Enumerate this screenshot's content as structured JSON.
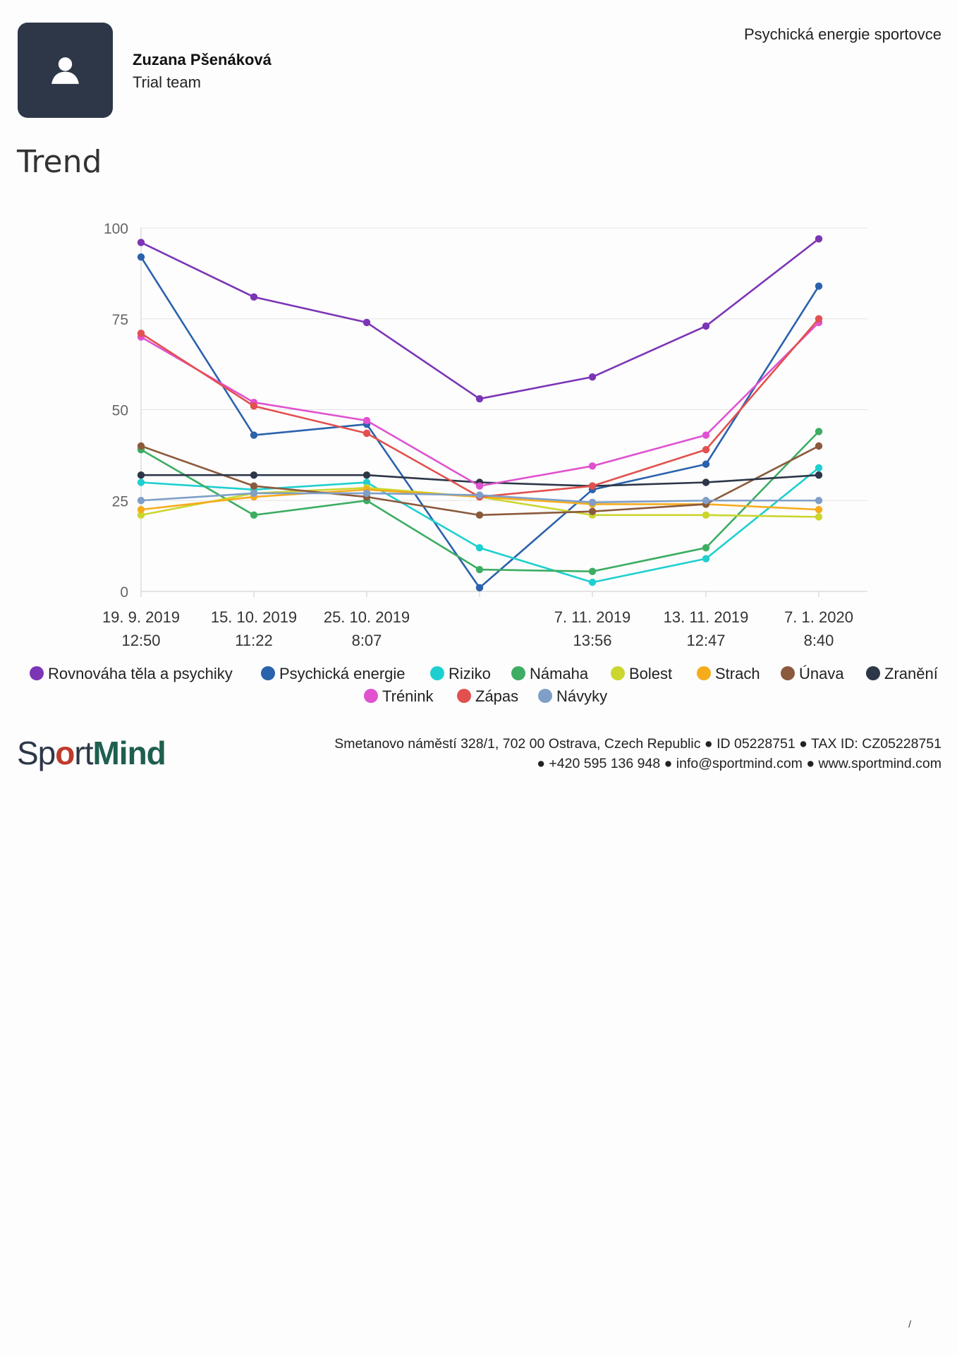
{
  "header": {
    "name": "Zuzana Pšenáková",
    "team": "Trial team",
    "doc_title": "Psychická energie sportovce"
  },
  "section_title": "Trend",
  "footer": {
    "logo_part1": "Sp",
    "logo_o": "o",
    "logo_part2": "rt",
    "logo_part3": "Mind",
    "line1": "Smetanovo náměstí 328/1, 702 00 Ostrava, Czech Republic ● ID 05228751 ● TAX ID: CZ05228751",
    "line2": "● +420 595 136 948 ● info@sportmind.com ● www.sportmind.com"
  },
  "page_number": "/",
  "chart_data": {
    "type": "line",
    "ylim": [
      0,
      100
    ],
    "yticks": [
      "0",
      "25",
      "50",
      "75",
      "100"
    ],
    "grid": true,
    "legend_placement": "bottom",
    "categories": [
      [
        "19. 9. 2019",
        "12:50"
      ],
      [
        "15. 10. 2019",
        "11:22"
      ],
      [
        "25. 10. 2019",
        "8:07"
      ],
      [
        "",
        ""
      ],
      [
        "7. 11. 2019",
        "13:56"
      ],
      [
        "13. 11. 2019",
        "12:47"
      ],
      [
        "7. 1. 2020",
        "8:40"
      ]
    ],
    "series": [
      {
        "name": "Rovnováha těla a psychiky",
        "color": "#7b35b5",
        "values": [
          96,
          81,
          74,
          53,
          59,
          73,
          97
        ]
      },
      {
        "name": "Psychická energie",
        "color": "#2a62ac",
        "values": [
          92,
          43,
          46,
          1,
          28,
          35,
          84
        ]
      },
      {
        "name": "Riziko",
        "color": "#1fcfcf",
        "values": [
          30,
          28,
          30,
          12,
          2.5,
          9,
          34
        ]
      },
      {
        "name": "Námaha",
        "color": "#3cad63",
        "values": [
          39,
          21,
          25,
          6,
          5.5,
          12,
          44
        ]
      },
      {
        "name": "Bolest",
        "color": "#cbd62e",
        "values": [
          21,
          27,
          28.5,
          26,
          21,
          21,
          20.5
        ]
      },
      {
        "name": "Strach",
        "color": "#f5ac1c",
        "values": [
          22.5,
          26,
          28,
          26,
          24,
          24,
          22.5
        ]
      },
      {
        "name": "Únava",
        "color": "#8b5a3c",
        "values": [
          40,
          29,
          26,
          21,
          22,
          24,
          40
        ]
      },
      {
        "name": "Zranění",
        "color": "#2d3748",
        "values": [
          32,
          32,
          32,
          30,
          29,
          30,
          32
        ]
      },
      {
        "name": "Trénink",
        "color": "#e052d0",
        "values": [
          70,
          52,
          47,
          29,
          34.5,
          43,
          74
        ]
      },
      {
        "name": "Zápas",
        "color": "#e2504f",
        "values": [
          71,
          51,
          43.5,
          26,
          29,
          39,
          75
        ]
      },
      {
        "name": "Návyky",
        "color": "#7f9fc7",
        "values": [
          25,
          27,
          27,
          26.5,
          24.5,
          25,
          25
        ]
      }
    ]
  }
}
